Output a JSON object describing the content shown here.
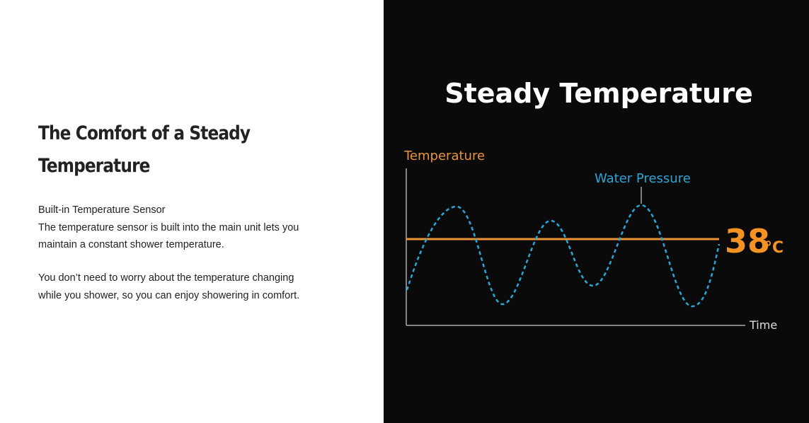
{
  "section": {
    "heading": "The Comfort of a Steady Temperature",
    "paragraphs": [
      [
        "Built-in Temperature Sensor",
        "The temperature sensor is built into the main unit lets you maintain a constant shower temperature."
      ],
      [
        "You don’t need to worry about the temperature changing while you shower, so you can enjoy showering in comfort."
      ]
    ]
  },
  "diagram": {
    "title": "Steady Temperature",
    "y_label": "Temperature",
    "x_label": "Time",
    "curve_label": "Water Pressure",
    "value": "38",
    "unit": "°C"
  }
}
